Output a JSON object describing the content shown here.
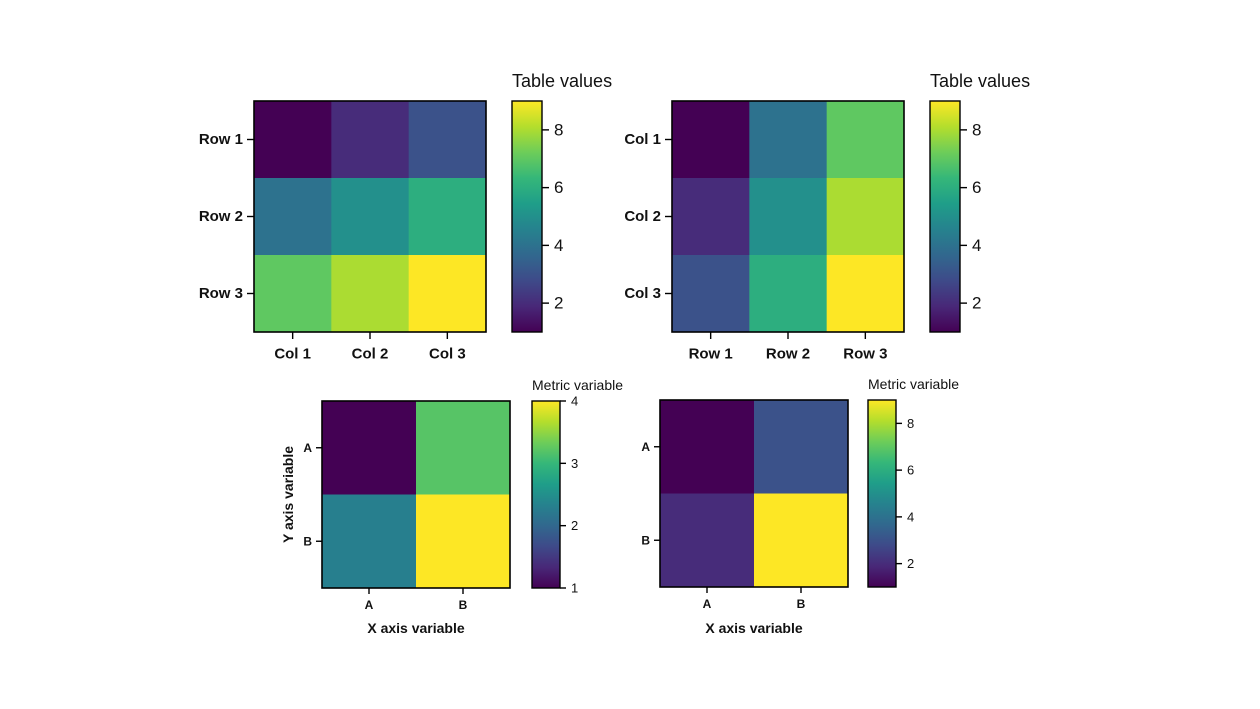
{
  "colormap": {
    "name": "viridis",
    "stops": [
      "#440154",
      "#482878",
      "#3e4a89",
      "#31688e",
      "#26828e",
      "#1f9e89",
      "#35b779",
      "#6dcd59",
      "#b4de2c",
      "#fde725"
    ]
  },
  "chart_data": [
    {
      "id": "heatmap-top-left",
      "type": "heatmap",
      "row_labels": [
        "Row 1",
        "Row 2",
        "Row 3"
      ],
      "col_labels": [
        "Col 1",
        "Col 2",
        "Col 3"
      ],
      "values": [
        [
          1,
          2,
          3
        ],
        [
          4,
          5,
          6
        ],
        [
          7,
          8,
          9
        ]
      ],
      "vmin": 1,
      "vmax": 9,
      "colorbar": {
        "title": "Table values",
        "ticks": [
          "2",
          "4",
          "6",
          "8"
        ],
        "tick_values": [
          2,
          4,
          6,
          8
        ]
      },
      "xlabel": "",
      "ylabel": ""
    },
    {
      "id": "heatmap-top-right",
      "type": "heatmap",
      "row_labels": [
        "Col 1",
        "Col 2",
        "Col 3"
      ],
      "col_labels": [
        "Row 1",
        "Row 2",
        "Row 3"
      ],
      "values": [
        [
          1,
          4,
          7
        ],
        [
          2,
          5,
          8
        ],
        [
          3,
          6,
          9
        ]
      ],
      "vmin": 1,
      "vmax": 9,
      "colorbar": {
        "title": "Table values",
        "ticks": [
          "2",
          "4",
          "6",
          "8"
        ],
        "tick_values": [
          2,
          4,
          6,
          8
        ]
      },
      "xlabel": "",
      "ylabel": ""
    },
    {
      "id": "heatmap-bottom-left",
      "type": "heatmap",
      "row_labels": [
        "A",
        "B"
      ],
      "col_labels": [
        "A",
        "B"
      ],
      "values": [
        [
          1,
          3.2
        ],
        [
          2.3,
          4
        ]
      ],
      "vmin": 1,
      "vmax": 4,
      "colorbar": {
        "title": "Metric variable",
        "ticks": [
          "1",
          "2",
          "3",
          "4"
        ],
        "tick_values": [
          1,
          2,
          3,
          4
        ]
      },
      "xlabel": "X axis variable",
      "ylabel": "Y axis variable"
    },
    {
      "id": "heatmap-bottom-right",
      "type": "heatmap",
      "row_labels": [
        "A",
        "B"
      ],
      "col_labels": [
        "A",
        "B"
      ],
      "values": [
        [
          1,
          3
        ],
        [
          2,
          9
        ]
      ],
      "vmin": 1,
      "vmax": 9,
      "colorbar": {
        "title": "Metric variable",
        "ticks": [
          "2",
          "4",
          "6",
          "8"
        ],
        "tick_values": [
          2,
          4,
          6,
          8
        ]
      },
      "xlabel": "X axis variable",
      "ylabel": ""
    }
  ]
}
